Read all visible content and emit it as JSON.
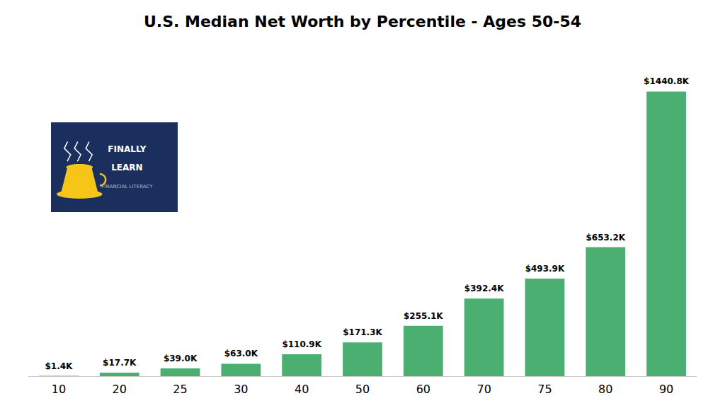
{
  "chart_data": {
    "type": "bar",
    "title": "U.S. Median Net Worth by Percentile - Ages 50-54",
    "categories": [
      "10",
      "20",
      "25",
      "30",
      "40",
      "50",
      "60",
      "70",
      "75",
      "80",
      "90"
    ],
    "values": [
      1.4,
      17.7,
      39.0,
      63.0,
      110.9,
      171.3,
      255.1,
      392.4,
      493.9,
      653.2,
      1440.8
    ],
    "value_labels": [
      "$1.4K",
      "$17.7K",
      "$39.0K",
      "$63.0K",
      "$110.9K",
      "$171.3K",
      "$255.1K",
      "$392.4K",
      "$493.9K",
      "$653.2K",
      "$1440.8K"
    ],
    "data_labels": true,
    "color": "#4caf72",
    "ylim": [
      0,
      1600
    ],
    "grid": false,
    "tick_labels": "x",
    "annotations": [
      "FINALLY",
      "LEARN",
      "FINANCIAL LITERACY"
    ]
  }
}
